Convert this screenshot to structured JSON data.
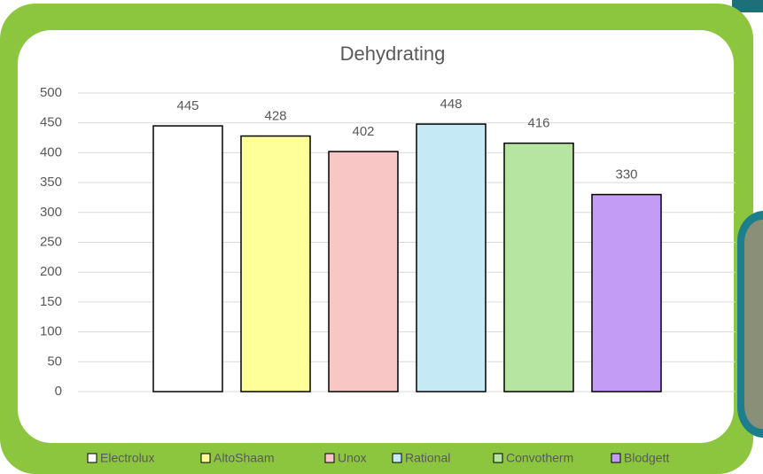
{
  "chart_data": {
    "type": "bar",
    "title": "Dehydrating",
    "categories": [
      "Electrolux",
      "AltoShaam",
      "Unox",
      "Rational",
      "Convotherm",
      "Blodgett"
    ],
    "values": [
      445,
      428,
      402,
      448,
      416,
      330
    ],
    "colors": [
      "#ffffff",
      "#ffff99",
      "#f9c6c6",
      "#c5e9f5",
      "#b5e5a0",
      "#c39df5"
    ],
    "ylim": [
      0,
      500
    ],
    "yticks": [
      0,
      50,
      100,
      150,
      200,
      250,
      300,
      350,
      400,
      450,
      500
    ],
    "grid": true,
    "legend": "bottom"
  }
}
